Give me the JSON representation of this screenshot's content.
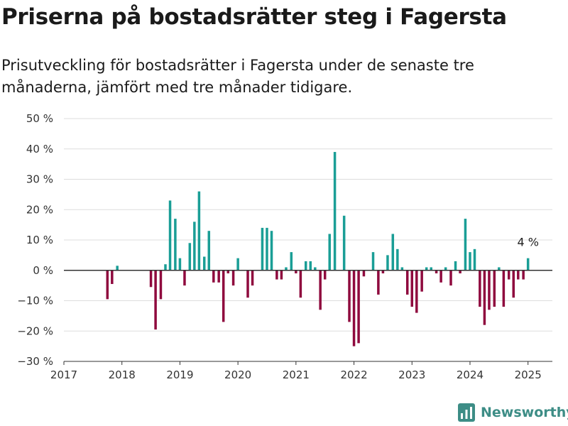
{
  "title": "Priserna på bostadsrätter steg i Fagersta",
  "subtitle": "Prisutveckling för bostadsrätter i Fagersta under de senaste tre månaderna, jämfört med tre månader tidigare.",
  "brand": "Newsworthy",
  "logo_icon": "bar-chart-logo-icon",
  "colors": {
    "positive": "#1a9e96",
    "negative": "#8f0a3e",
    "brand": "#3d8d86"
  },
  "chart_data": {
    "type": "bar",
    "y_tick_labels": [
      "50 %",
      "40 %",
      "30 %",
      "20 %",
      "10 %",
      "0 %",
      "−10 %",
      "−20 %",
      "−30 %"
    ],
    "y_ticks": [
      50,
      40,
      30,
      20,
      10,
      0,
      -10,
      -20,
      -30
    ],
    "ylim": [
      -30,
      50
    ],
    "x_tick_labels": [
      "2017",
      "2018",
      "2019",
      "2020",
      "2021",
      "2022",
      "2023",
      "2024",
      "2025"
    ],
    "xlim": [
      2017,
      2025.42
    ],
    "grid": true,
    "annotation": {
      "text": "4 %",
      "x": 2025.0,
      "y": 4
    },
    "x": [
      2017.75,
      2017.83,
      2017.92,
      2018.5,
      2018.58,
      2018.67,
      2018.75,
      2018.83,
      2018.92,
      2019.0,
      2019.08,
      2019.17,
      2019.25,
      2019.33,
      2019.42,
      2019.5,
      2019.58,
      2019.67,
      2019.75,
      2019.83,
      2019.92,
      2020.0,
      2020.17,
      2020.25,
      2020.42,
      2020.5,
      2020.58,
      2020.67,
      2020.75,
      2020.83,
      2020.92,
      2021.0,
      2021.08,
      2021.17,
      2021.25,
      2021.33,
      2021.42,
      2021.5,
      2021.58,
      2021.67,
      2021.83,
      2021.92,
      2022.0,
      2022.08,
      2022.17,
      2022.33,
      2022.42,
      2022.5,
      2022.58,
      2022.67,
      2022.75,
      2022.83,
      2022.92,
      2023.0,
      2023.08,
      2023.17,
      2023.25,
      2023.33,
      2023.42,
      2023.5,
      2023.58,
      2023.67,
      2023.75,
      2023.83,
      2023.92,
      2024.0,
      2024.08,
      2024.17,
      2024.25,
      2024.33,
      2024.42,
      2024.5,
      2024.58,
      2024.67,
      2024.75,
      2024.83,
      2024.92,
      2025.0
    ],
    "values": [
      -9.5,
      -4.5,
      1.5,
      -5.5,
      -19.5,
      -9.5,
      2,
      23,
      17,
      4,
      -5,
      9,
      16,
      26,
      4.5,
      13,
      -4,
      -4,
      -17,
      -1,
      -5,
      4,
      -9,
      -5,
      14,
      14,
      13,
      -3,
      -3,
      1,
      6,
      -1,
      -9,
      3,
      3,
      1,
      -13,
      -3,
      12,
      39,
      18,
      -17,
      -25,
      -24,
      -2,
      6,
      -8,
      -1,
      5,
      12,
      7,
      1,
      -8,
      -12,
      -14,
      -7,
      1,
      1,
      -1,
      -4,
      1,
      -5,
      3,
      -1,
      17,
      6,
      7,
      -12,
      -18,
      -13,
      -12,
      1,
      -12,
      -3,
      -9,
      -3,
      -3,
      4
    ]
  }
}
